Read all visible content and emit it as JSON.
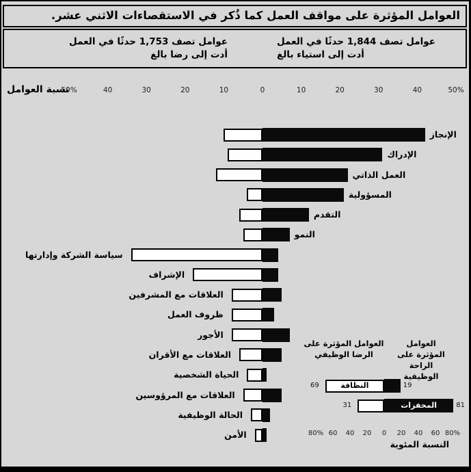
{
  "title": "العوامل المؤثرة على مواقف العمل كما ذُكر في الاستقصاءات الاثني عشر.",
  "colors": {
    "background": "#d7d7d7",
    "bar_dark": "#0b0b0b",
    "bar_light": "#ffffff",
    "border": "#000000"
  },
  "header": {
    "right": {
      "line1": "عوامل تصف 1,844 حدثًا في العمل",
      "line2": "أدت إلى استياء بالغ"
    },
    "left": {
      "line1": "عوامل تصف 1,753 حدثًا في العمل",
      "line2": "أدت إلى رضا بالغ"
    }
  },
  "main_axis": {
    "label": "نسبة العوامل",
    "ticks": [
      {
        "label": "50%",
        "value": -50
      },
      {
        "label": "40",
        "value": -40
      },
      {
        "label": "30",
        "value": -30
      },
      {
        "label": "20",
        "value": -20
      },
      {
        "label": "10",
        "value": -10
      },
      {
        "label": "0",
        "value": 0
      },
      {
        "label": "10",
        "value": 10
      },
      {
        "label": "20",
        "value": 20
      },
      {
        "label": "30",
        "value": 30
      },
      {
        "label": "40",
        "value": 40
      },
      {
        "label": "50%",
        "value": 50
      }
    ]
  },
  "chart_data": [
    {
      "type": "bar",
      "orientation": "horizontal-diverging",
      "title": "العوامل المؤثرة على مواقف العمل كما ذُكر في الاستقصاءات الاثني عشر.",
      "xlabel": "نسبة العوامل",
      "xlim": [
        -50,
        50
      ],
      "grid": false,
      "categories": [
        "الإنجاز",
        "الإدراك",
        "العمل الذاتي",
        "المسؤولية",
        "التقدم",
        "النمو",
        "سياسة الشركة وإدارتها",
        "الإشراف",
        "العلاقات مع المشرفين",
        "ظروف العمل",
        "الأجور",
        "العلاقات مع الأقران",
        "الحياة الشخصية",
        "العلاقات مع المرؤوسين",
        "الحالة الوظيفية",
        "الأمن"
      ],
      "label_sides": [
        "right",
        "right",
        "right",
        "right",
        "right",
        "right",
        "left",
        "left",
        "left",
        "left",
        "left",
        "left",
        "left",
        "left",
        "left",
        "left"
      ],
      "series": [
        {
          "name": "الجانب الأيسر (أشرطة بيضاء) — أدت إلى رضا بالغ",
          "values": [
            10,
            9,
            12,
            4,
            6,
            5,
            34,
            18,
            8,
            8,
            8,
            6,
            4,
            5,
            3,
            2
          ]
        },
        {
          "name": "الجانب الأيمن (أشرطة سوداء) — أدت إلى استياء بالغ",
          "values": [
            42,
            31,
            22,
            21,
            12,
            7,
            4,
            4,
            5,
            3,
            7,
            5,
            1,
            5,
            2,
            1
          ]
        }
      ]
    },
    {
      "type": "bar",
      "orientation": "horizontal-diverging",
      "headers": {
        "left": {
          "line1": "العوامل المؤثرة على",
          "line2": "الرضا الوظيفي"
        },
        "right": {
          "line1": "العوامل المؤثرة على",
          "line2": "الراحة الوظيفية"
        }
      },
      "categories": [
        "النظافة",
        "المحفزات"
      ],
      "label_in": [
        "light",
        "dark"
      ],
      "series": [
        {
          "name": "الجانب الأيسر (أبيض)",
          "values": [
            69,
            31
          ]
        },
        {
          "name": "الجانب الأيمن (أسود)",
          "values": [
            19,
            81
          ]
        }
      ],
      "value_labels": {
        "left": [
          "69",
          "31"
        ],
        "right": [
          "19",
          "81"
        ]
      },
      "xlim": [
        -80,
        80
      ],
      "ticks": [
        {
          "label": "80%",
          "value": -80
        },
        {
          "label": "60",
          "value": -60
        },
        {
          "label": "40",
          "value": -40
        },
        {
          "label": "20",
          "value": -20
        },
        {
          "label": "0",
          "value": 0
        },
        {
          "label": "20",
          "value": 20
        },
        {
          "label": "40",
          "value": 40
        },
        {
          "label": "60",
          "value": 60
        },
        {
          "label": "80%",
          "value": 80
        }
      ],
      "xlabel": "النسبة المئوية"
    }
  ]
}
